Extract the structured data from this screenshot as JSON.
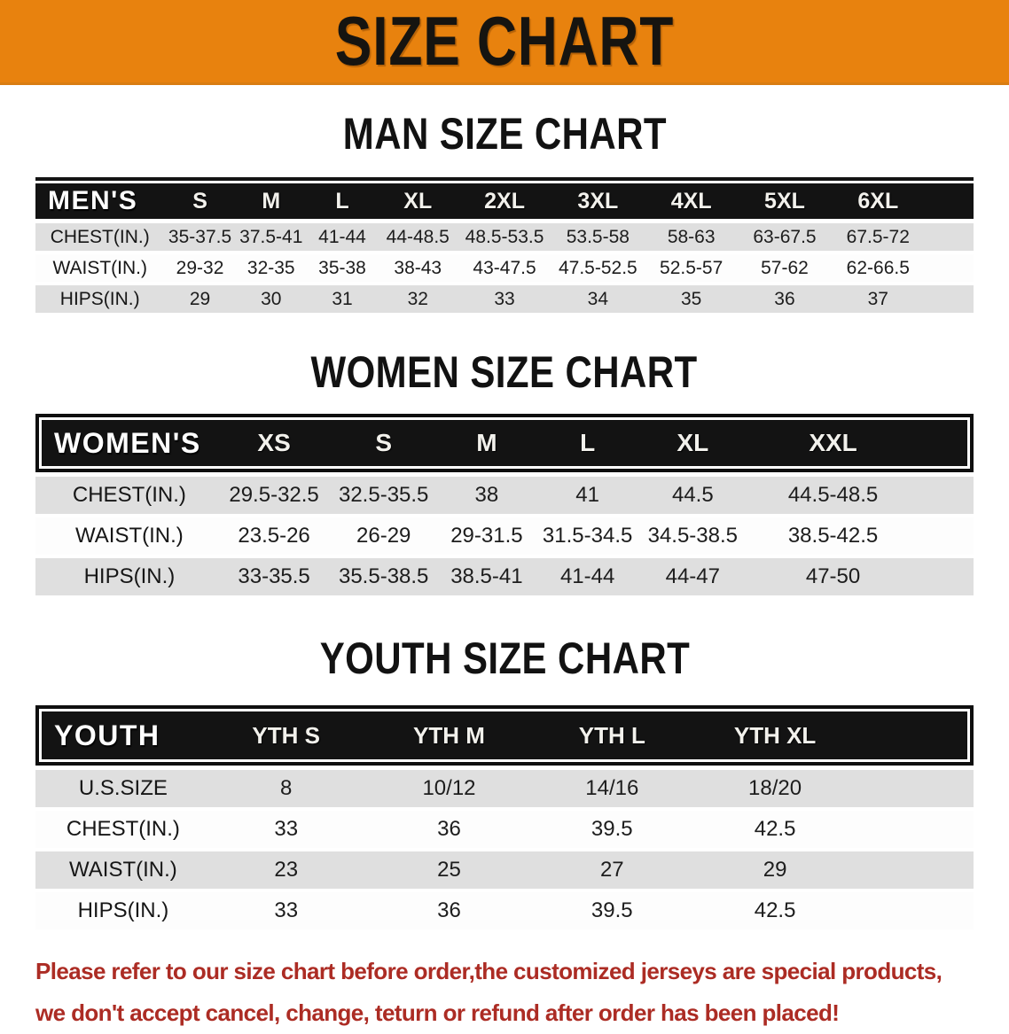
{
  "banner": {
    "title": "SIZE CHART"
  },
  "colors": {
    "banner_orange": "#E8820E",
    "header_black": "#131313",
    "row_gray": "#DFDFDF",
    "note_red": "#AC2C24"
  },
  "sections": [
    {
      "title": "MAN SIZE CHART",
      "table": {
        "corner_label": "MEN'S",
        "columns": [
          "S",
          "M",
          "L",
          "XL",
          "2XL",
          "3XL",
          "4XL",
          "5XL",
          "6XL"
        ],
        "rows": [
          {
            "label": "CHEST(IN.)",
            "values": [
              "35-37.5",
              "37.5-41",
              "41-44",
              "44-48.5",
              "48.5-53.5",
              "53.5-58",
              "58-63",
              "63-67.5",
              "67.5-72"
            ]
          },
          {
            "label": "WAIST(IN.)",
            "values": [
              "29-32",
              "32-35",
              "35-38",
              "38-43",
              "43-47.5",
              "47.5-52.5",
              "52.5-57",
              "57-62",
              "62-66.5"
            ]
          },
          {
            "label": "HIPS(IN.)",
            "values": [
              "29",
              "30",
              "31",
              "32",
              "33",
              "34",
              "35",
              "36",
              "37"
            ]
          }
        ]
      }
    },
    {
      "title": "WOMEN SIZE CHART",
      "table": {
        "corner_label": "WOMEN'S",
        "columns": [
          "XS",
          "S",
          "M",
          "L",
          "XL",
          "XXL"
        ],
        "rows": [
          {
            "label": "CHEST(IN.)",
            "values": [
              "29.5-32.5",
              "32.5-35.5",
              "38",
              "41",
              "44.5",
              "44.5-48.5"
            ]
          },
          {
            "label": "WAIST(IN.)",
            "values": [
              "23.5-26",
              "26-29",
              "29-31.5",
              "31.5-34.5",
              "34.5-38.5",
              "38.5-42.5"
            ]
          },
          {
            "label": "HIPS(IN.)",
            "values": [
              "33-35.5",
              "35.5-38.5",
              "38.5-41",
              "41-44",
              "44-47",
              "47-50"
            ]
          }
        ]
      }
    },
    {
      "title": "YOUTH SIZE CHART",
      "table": {
        "corner_label": "YOUTH",
        "columns": [
          "YTH S",
          "YTH M",
          "YTH L",
          "YTH XL"
        ],
        "rows": [
          {
            "label": "U.S.SIZE",
            "values": [
              "8",
              "10/12",
              "14/16",
              "18/20"
            ]
          },
          {
            "label": "CHEST(IN.)",
            "values": [
              "33",
              "36",
              "39.5",
              "42.5"
            ]
          },
          {
            "label": "WAIST(IN.)",
            "values": [
              "23",
              "25",
              "27",
              "29"
            ]
          },
          {
            "label": "HIPS(IN.)",
            "values": [
              "33",
              "36",
              "39.5",
              "42.5"
            ]
          }
        ]
      }
    }
  ],
  "footer_note": {
    "line1": "Please refer to our size chart before order,the customized jerseys are special products,",
    "line2": "we don't accept cancel, change, teturn or refund after order has been placed!"
  }
}
